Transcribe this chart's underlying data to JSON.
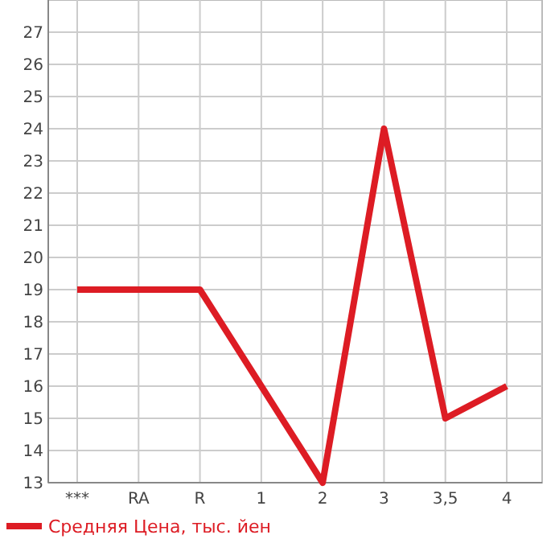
{
  "chart_data": {
    "type": "line",
    "categories": [
      "***",
      "RA",
      "R",
      "1",
      "2",
      "3",
      "3,5",
      "4"
    ],
    "series": [
      {
        "name": "Средняя Цена, тыс. йен",
        "color": "#dd1c24",
        "values": [
          19,
          19,
          19,
          16,
          13,
          24,
          15,
          16
        ]
      }
    ],
    "ylim": [
      13,
      28
    ],
    "yticks": [
      13,
      14,
      15,
      16,
      17,
      18,
      19,
      20,
      21,
      22,
      23,
      24,
      25,
      26,
      27
    ],
    "grid": true,
    "legend": "bottom",
    "marker": "none",
    "line_style": "solid"
  }
}
